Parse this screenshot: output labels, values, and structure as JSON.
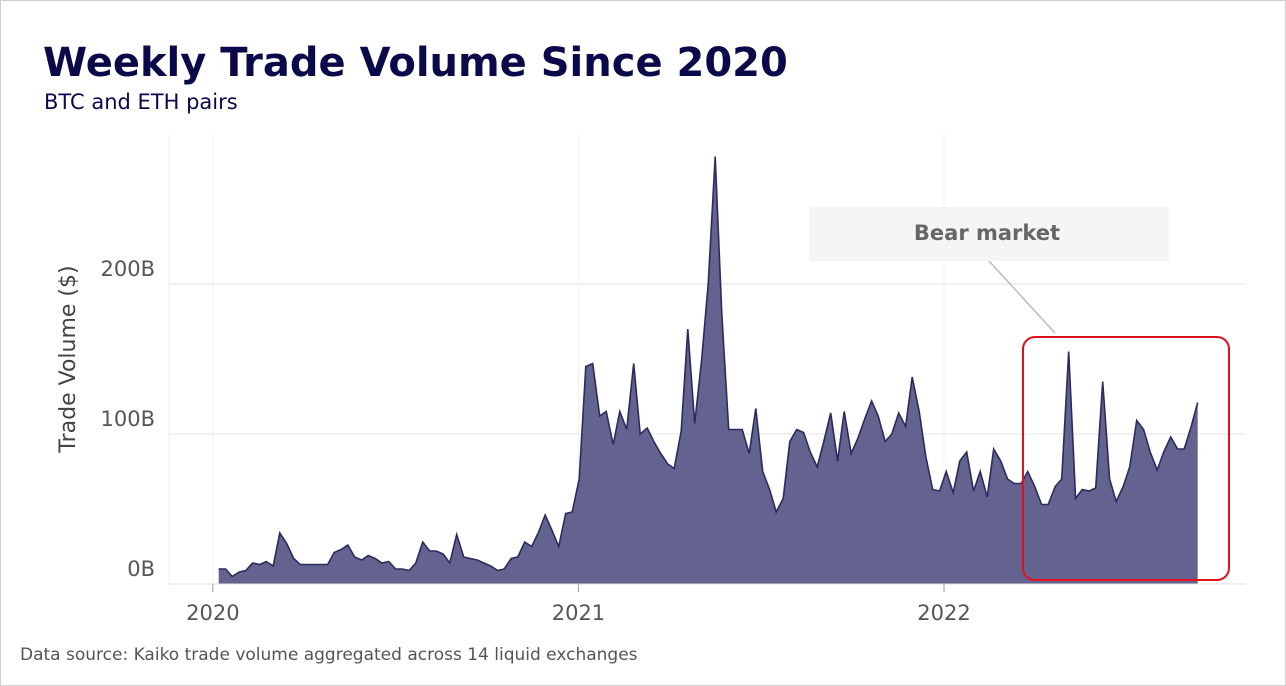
{
  "chart_data": {
    "type": "area",
    "title": "Weekly Trade Volume Since 2020",
    "subtitle": "BTC and ETH pairs",
    "y_label": "Trade Volume ($)",
    "annotation": "Bear market",
    "source": "Data source: Kaiko trade volume aggregated across 14 liquid exchanges",
    "color": "#64628e",
    "line_color": "#2d2a5e",
    "grid": true,
    "xlim": [
      2019.88,
      2022.826
    ],
    "xticks": [
      2020,
      2021,
      2022
    ],
    "ylim": [
      0,
      300
    ],
    "yticks": [
      {
        "value": 0,
        "label": "0B"
      },
      {
        "value": 100,
        "label": "100B"
      },
      {
        "value": 200,
        "label": "200B"
      }
    ],
    "x": [
      2020.016,
      2020.035,
      2020.053,
      2020.072,
      2020.09,
      2020.109,
      2020.128,
      2020.146,
      2020.165,
      2020.183,
      2020.202,
      2020.221,
      2020.239,
      2020.258,
      2020.276,
      2020.295,
      2020.314,
      2020.332,
      2020.351,
      2020.369,
      2020.388,
      2020.407,
      2020.425,
      2020.444,
      2020.462,
      2020.481,
      2020.5,
      2020.518,
      2020.537,
      2020.555,
      2020.574,
      2020.593,
      2020.611,
      2020.63,
      2020.648,
      2020.667,
      2020.686,
      2020.704,
      2020.723,
      2020.741,
      2020.76,
      2020.779,
      2020.797,
      2020.816,
      2020.834,
      2020.853,
      2020.872,
      2020.89,
      2020.909,
      2020.927,
      2020.946,
      2020.965,
      2020.983,
      2021.002,
      2021.02,
      2021.039,
      2021.058,
      2021.076,
      2021.095,
      2021.113,
      2021.132,
      2021.151,
      2021.169,
      2021.188,
      2021.206,
      2021.225,
      2021.244,
      2021.262,
      2021.281,
      2021.299,
      2021.318,
      2021.337,
      2021.355,
      2021.374,
      2021.392,
      2021.411,
      2021.43,
      2021.448,
      2021.467,
      2021.485,
      2021.504,
      2021.523,
      2021.541,
      2021.56,
      2021.578,
      2021.597,
      2021.616,
      2021.634,
      2021.653,
      2021.671,
      2021.69,
      2021.709,
      2021.727,
      2021.746,
      2021.764,
      2021.783,
      2021.802,
      2021.82,
      2021.839,
      2021.857,
      2021.876,
      2021.895,
      2021.913,
      2021.932,
      2021.95,
      2021.969,
      2021.988,
      2022.006,
      2022.025,
      2022.043,
      2022.062,
      2022.081,
      2022.099,
      2022.118,
      2022.136,
      2022.155,
      2022.174,
      2022.192,
      2022.211,
      2022.229,
      2022.248,
      2022.267,
      2022.285,
      2022.304,
      2022.322,
      2022.341,
      2022.36,
      2022.378,
      2022.397,
      2022.415,
      2022.434,
      2022.453,
      2022.471,
      2022.49,
      2022.508,
      2022.527,
      2022.546,
      2022.564,
      2022.583,
      2022.601,
      2022.62,
      2022.639,
      2022.657,
      2022.676,
      2022.694
    ],
    "values": [
      10,
      10,
      5,
      8,
      9,
      14,
      13,
      15,
      12,
      34,
      27,
      17,
      13,
      13,
      13,
      13,
      13,
      21,
      23,
      26,
      18,
      16,
      19,
      17,
      14,
      15,
      10,
      10,
      9,
      14,
      28,
      22,
      22,
      20,
      14,
      33,
      18,
      17,
      16,
      14,
      12,
      9,
      10,
      17,
      18,
      28,
      25,
      34,
      46,
      36,
      25,
      47,
      48,
      70,
      145,
      147,
      112,
      115,
      93,
      115,
      103,
      147,
      100,
      104,
      95,
      87,
      80,
      77,
      102,
      170,
      107,
      150,
      200,
      285,
      180,
      103,
      103,
      103,
      87,
      117,
      75,
      63,
      48,
      57,
      95,
      103,
      101,
      88,
      78,
      95,
      114,
      82,
      115,
      87,
      97,
      110,
      122,
      112,
      95,
      100,
      114,
      105,
      138,
      115,
      85,
      63,
      62,
      75,
      61,
      82,
      88,
      62,
      75,
      58,
      90,
      82,
      70,
      67,
      67,
      75,
      65,
      53,
      53,
      65,
      70,
      155,
      57,
      63,
      62,
      64,
      135,
      70,
      55,
      65,
      78,
      109,
      103,
      88,
      76,
      88,
      98,
      90,
      90,
      105,
      121
    ]
  }
}
